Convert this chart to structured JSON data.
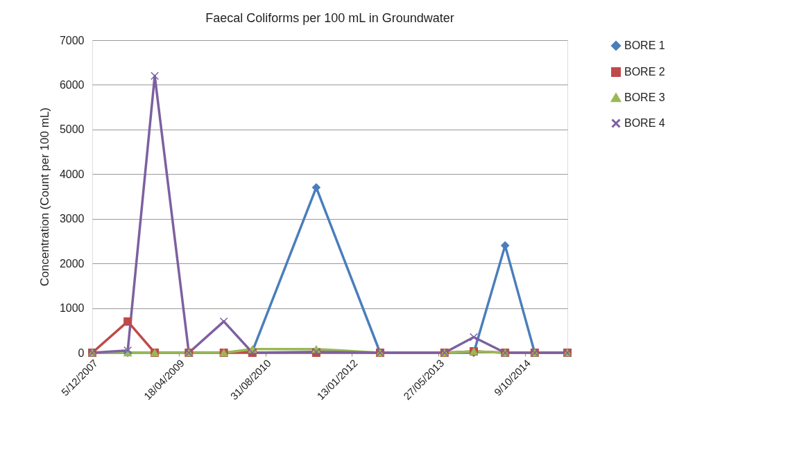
{
  "chart_data": {
    "type": "line",
    "title": "Faecal Coliforms per 100 mL in Groundwater",
    "ylabel": "Concentration (Count per 100 mL)",
    "x": [
      "2007-12-05",
      "2008-06-27",
      "2008-11-30",
      "2009-06-15",
      "2010-01-03",
      "2010-06-17",
      "2011-06-21",
      "2012-06-24",
      "2013-07-01",
      "2013-12-17",
      "2014-06-16",
      "2014-12-04",
      "2015-06-11"
    ],
    "series": [
      {
        "name": "BORE 1",
        "color": "#4a7ebb",
        "marker": "diamond",
        "values": [
          0,
          0,
          0,
          0,
          0,
          30,
          3700,
          0,
          0,
          0,
          2400,
          0,
          0
        ]
      },
      {
        "name": "BORE 2",
        "color": "#be4b48",
        "marker": "square",
        "values": [
          0,
          700,
          0,
          0,
          0,
          0,
          0,
          0,
          0,
          30,
          0,
          0,
          0
        ]
      },
      {
        "name": "BORE 3",
        "color": "#98b954",
        "marker": "triangle",
        "values": [
          0,
          0,
          0,
          0,
          0,
          80,
          80,
          0,
          0,
          30,
          0,
          0,
          0
        ]
      },
      {
        "name": "BORE 4",
        "color": "#7d60a0",
        "marker": "cross",
        "values": [
          0,
          50,
          6200,
          0,
          700,
          0,
          20,
          0,
          0,
          350,
          0,
          0,
          0
        ]
      }
    ],
    "xlim": [
      "2007-12-05",
      "2015-06-11"
    ],
    "xticks": [
      {
        "value": "2007-12-05",
        "label": "5/12/2007"
      },
      {
        "value": "2009-04-18",
        "label": "18/04/2009"
      },
      {
        "value": "2010-08-31",
        "label": "31/08/2010"
      },
      {
        "value": "2012-01-13",
        "label": "13/01/2012"
      },
      {
        "value": "2013-05-27",
        "label": "27/05/2013"
      },
      {
        "value": "2014-10-09",
        "label": "9/10/2014"
      }
    ],
    "ylim": [
      0,
      7000
    ],
    "yticks": [
      0,
      1000,
      2000,
      3000,
      4000,
      5000,
      6000,
      7000
    ],
    "grid": "y",
    "legend": "right",
    "line_style": "solid"
  }
}
